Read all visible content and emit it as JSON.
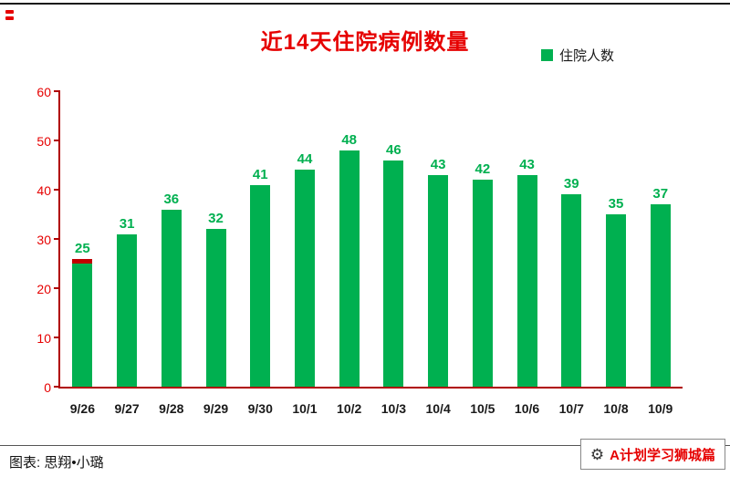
{
  "page": {
    "title": "近14天住院病例数量",
    "legend_label": "住院人数",
    "footer_left": "图表: 思翔•小璐",
    "watermark": "A计划学习狮城篇",
    "gear_icon": "⚙"
  },
  "chart_data": {
    "type": "bar",
    "title": "近14天住院病例数量",
    "categories": [
      "9/26",
      "9/27",
      "9/28",
      "9/29",
      "9/30",
      "10/1",
      "10/2",
      "10/3",
      "10/4",
      "10/5",
      "10/6",
      "10/7",
      "10/8",
      "10/9"
    ],
    "values": [
      25,
      31,
      36,
      32,
      41,
      44,
      48,
      46,
      43,
      42,
      43,
      39,
      35,
      37
    ],
    "series": [
      {
        "name": "住院人数",
        "values": [
          25,
          31,
          36,
          32,
          41,
          44,
          48,
          46,
          43,
          42,
          43,
          39,
          35,
          37
        ]
      }
    ],
    "red_cap": {
      "index": 0,
      "value": 1
    },
    "xlabel": "",
    "ylabel": "",
    "ylim": [
      0,
      60
    ],
    "yticks": [
      0,
      10,
      20,
      30,
      40,
      50,
      60
    ],
    "grid": false,
    "legend_position": "top-right",
    "colors": {
      "bar": "#00b050",
      "value_label": "#00b050",
      "axis": "#b00000",
      "ytick_label": "#e60000",
      "xtick_label": "#1a1a1a",
      "title": "#e60000",
      "red_cap": "#c00000"
    }
  }
}
